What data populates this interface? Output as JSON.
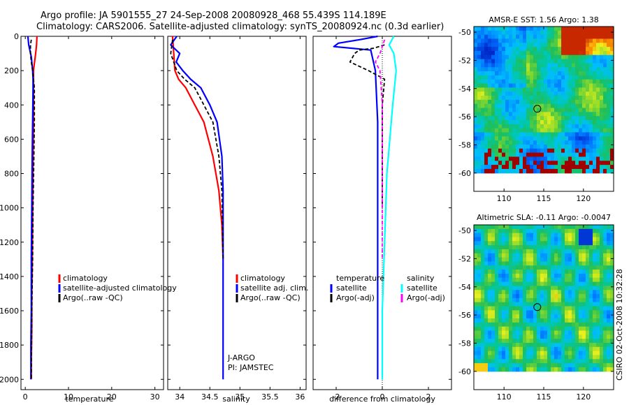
{
  "header": {
    "title_line1": "Argo profile: JA 5901555_27 24-Sep-2008 20080928_468 55.439S 114.189E",
    "title_line2": "Climatology: CARS2006. Satellite-adjusted climatology: synTS_20080924.nc (0.3d earlier)"
  },
  "footer": {
    "credit": "CSIRO 02-Oct-2008 10:32:28"
  },
  "colors": {
    "red": "#ff0000",
    "blue": "#0000ff",
    "black": "#000000",
    "cyan": "#00ffff",
    "magenta": "#ff00ff"
  },
  "chart_data": [
    {
      "id": "temperature",
      "type": "line",
      "xlabel": "temperature",
      "ylabel": "",
      "xlim": [
        -1,
        32
      ],
      "ylim": [
        2060,
        0
      ],
      "xticks": [
        0,
        10,
        20,
        30
      ],
      "yticks": [
        0,
        200,
        400,
        600,
        800,
        1000,
        1200,
        1400,
        1600,
        1800,
        2000
      ],
      "series": [
        {
          "name": "climatology",
          "style": "red",
          "x": [
            2.7,
            2.6,
            2.4,
            2.0,
            1.9,
            1.9,
            1.9,
            1.8,
            1.7,
            1.6,
            1.5,
            1.5,
            1.4,
            1.4
          ],
          "y": [
            0,
            50,
            100,
            180,
            200,
            300,
            500,
            700,
            1000,
            1300,
            1500,
            1700,
            1900,
            2000
          ]
        },
        {
          "name": "satellite-adjusted climatology",
          "style": "blue",
          "x": [
            0.6,
            0.8,
            1.4,
            1.7,
            1.8,
            1.8,
            1.7,
            1.6,
            1.5,
            1.4,
            1.4,
            1.3,
            1.3
          ],
          "y": [
            0,
            50,
            120,
            200,
            250,
            300,
            500,
            700,
            1000,
            1300,
            1600,
            1800,
            2000
          ]
        },
        {
          "name": "Argo(..raw -QC)",
          "style": "black-dash",
          "x": [
            1.4,
            1.2,
            1.2,
            1.4,
            1.7,
            2.1,
            2.1,
            2.0,
            1.8,
            1.7,
            1.5,
            1.4
          ],
          "y": [
            20,
            50,
            100,
            150,
            200,
            300,
            500,
            700,
            1000,
            1300,
            1600,
            2000
          ]
        }
      ],
      "legend": {
        "position": "lower-right",
        "entries": [
          "climatology",
          "satellite-adjusted climatology",
          "Argo(..raw -QC)"
        ]
      }
    },
    {
      "id": "salinity",
      "type": "line",
      "xlabel": "salinity",
      "xlim": [
        33.8,
        36.1
      ],
      "ylim": [
        2060,
        0
      ],
      "xticks": [
        34,
        34.5,
        35,
        35.5,
        36
      ],
      "series": [
        {
          "name": "climatology",
          "style": "red",
          "x": [
            33.88,
            33.9,
            33.92,
            33.98,
            34.1,
            34.25,
            34.4,
            34.55,
            34.65,
            34.7,
            34.72
          ],
          "y": [
            0,
            100,
            200,
            250,
            300,
            400,
            500,
            700,
            900,
            1100,
            1300
          ]
        },
        {
          "name": "satellite adj. clim.",
          "style": "blue",
          "x": [
            33.95,
            33.85,
            34.0,
            33.94,
            34.05,
            34.18,
            34.35,
            34.5,
            34.62,
            34.7,
            34.72,
            34.72,
            34.72,
            34.72
          ],
          "y": [
            0,
            50,
            100,
            150,
            200,
            250,
            300,
            400,
            500,
            700,
            900,
            1300,
            1700,
            2000
          ]
        },
        {
          "name": "Argo(..raw -QC)",
          "style": "black-dash",
          "x": [
            33.88,
            33.85,
            33.9,
            33.95,
            34.08,
            34.25,
            34.4,
            34.55,
            34.65,
            34.7,
            34.72
          ],
          "y": [
            20,
            100,
            150,
            200,
            250,
            300,
            400,
            500,
            700,
            900,
            1300
          ]
        }
      ],
      "legend": {
        "position": "lower-right",
        "entries": [
          "climatology",
          "satellite adj. clim.",
          "Argo(..raw -QC)"
        ]
      },
      "annotations": [
        "J-ARGO",
        "PI: JAMSTEC"
      ]
    },
    {
      "id": "difference",
      "type": "line",
      "xlabel": "difference from climatology",
      "xlim": [
        -3,
        3
      ],
      "ylim": [
        2060,
        0
      ],
      "xticks": [
        -2,
        0,
        2
      ],
      "series": [
        {
          "name": "temperature satellite",
          "style": "blue",
          "x": [
            -0.2,
            -1.0,
            -1.9,
            -2.1,
            -0.5,
            -0.3,
            -0.2,
            -0.2,
            -0.2,
            -0.2
          ],
          "y": [
            0,
            20,
            40,
            60,
            80,
            200,
            500,
            1000,
            1500,
            2000
          ]
        },
        {
          "name": "temperature Argo(-adj)",
          "style": "black-dash",
          "x": [
            0.1,
            -0.4,
            -1.0,
            -1.2,
            -1.4,
            -0.6,
            0.1,
            0.0,
            0.0
          ],
          "y": [
            50,
            70,
            80,
            100,
            150,
            200,
            250,
            400,
            1000
          ]
        },
        {
          "name": "salinity satellite",
          "style": "cyan",
          "x": [
            0.5,
            0.3,
            0.5,
            0.6,
            0.45,
            0.2,
            0.1,
            0.0,
            0.0
          ],
          "y": [
            0,
            50,
            100,
            200,
            400,
            800,
            1200,
            1600,
            2000
          ]
        },
        {
          "name": "salinity Argo(-adj)",
          "style": "magenta-dash",
          "x": [
            0.1,
            -0.1,
            -0.3,
            -0.1,
            0.0,
            0.0
          ],
          "y": [
            20,
            100,
            150,
            200,
            400,
            1300
          ]
        }
      ],
      "legend_groups": [
        {
          "heading": "temperature",
          "entries": [
            "satellite",
            "Argo(-adj)"
          ]
        },
        {
          "heading": "salinity",
          "entries": [
            "satellite",
            "Argo(-adj)"
          ]
        }
      ]
    },
    {
      "id": "sst-map",
      "type": "heatmap",
      "title": "AMSR-E SST: 1.56 Argo: 1.38",
      "xlim": [
        106.2,
        123.8
      ],
      "ylim": [
        -61.3,
        -49.6
      ],
      "xticks": [
        110,
        115,
        120
      ],
      "yticks": [
        -50,
        -52,
        -54,
        -56,
        -58,
        -60
      ],
      "marker": {
        "lon": 114.189,
        "lat": -55.439,
        "shape": "circle"
      },
      "missing_below_lat": -60.0,
      "field": "smoothed sea-surface temperature anomaly, green/blue with orange near 118E at -50, red land/ice pixels at -58 to -60"
    },
    {
      "id": "sla-map",
      "type": "heatmap",
      "title": "Altimetric SLA: -0.11 Argo: -0.0047",
      "xlim": [
        106.2,
        123.8
      ],
      "ylim": [
        -61.3,
        -49.6
      ],
      "xticks": [
        110,
        115,
        120
      ],
      "yticks": [
        -50,
        -52,
        -54,
        -56,
        -58,
        -60
      ],
      "marker": {
        "lon": 114.189,
        "lat": -55.439,
        "shape": "circle"
      },
      "missing_below_lat": -60.0,
      "field": "sea level anomaly, green with yellow and blue eddies"
    }
  ]
}
